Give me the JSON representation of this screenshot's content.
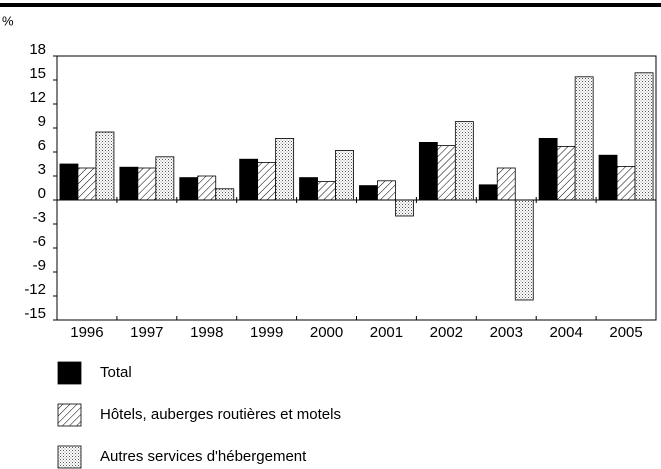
{
  "chart_data": {
    "type": "bar",
    "unit_label": "%",
    "categories": [
      "1996",
      "1997",
      "1998",
      "1999",
      "2000",
      "2001",
      "2002",
      "2003",
      "2004",
      "2005"
    ],
    "series": [
      {
        "name": "Total",
        "color": "#000000",
        "pattern": "solid",
        "values": [
          4.5,
          4.1,
          2.8,
          5.1,
          2.8,
          1.8,
          7.2,
          1.9,
          7.7,
          5.6
        ]
      },
      {
        "name": "Hôtels, auberges routières et motels",
        "color": "#000000",
        "pattern": "hatch",
        "values": [
          4.0,
          4.0,
          3.0,
          4.7,
          2.3,
          2.4,
          6.8,
          4.0,
          6.7,
          4.2
        ]
      },
      {
        "name": "Autres services d'hébergement",
        "color": "#000000",
        "pattern": "dots",
        "values": [
          8.5,
          5.4,
          1.4,
          7.7,
          6.2,
          -2.0,
          9.8,
          -12.5,
          15.4,
          15.9
        ]
      }
    ],
    "ylim": [
      -15,
      18
    ],
    "yticks": [
      -15,
      -12,
      -9,
      -6,
      -3,
      0,
      3,
      6,
      9,
      12,
      15,
      18
    ]
  }
}
